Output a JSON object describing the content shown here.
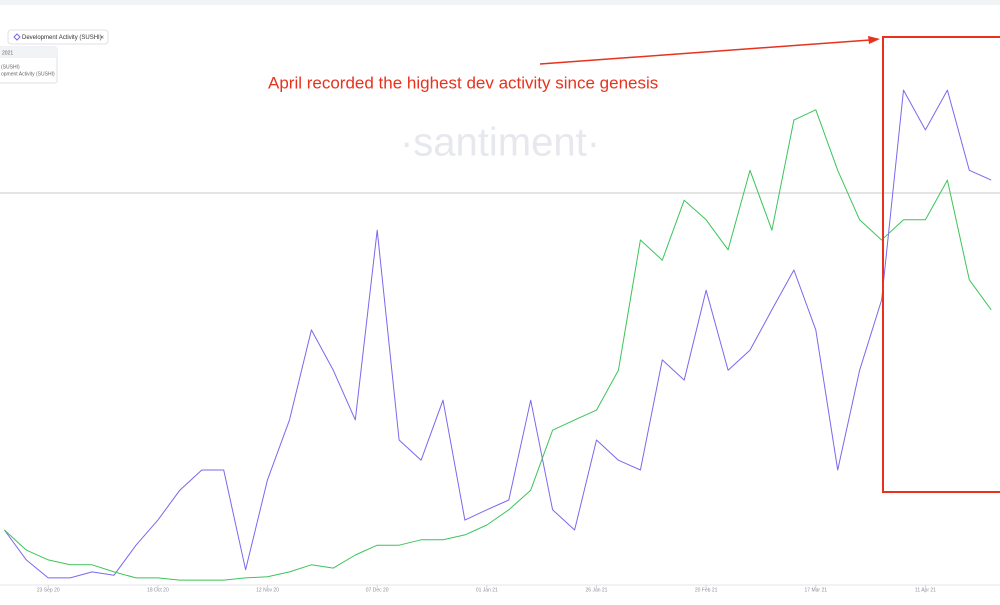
{
  "chart_data": {
    "type": "line",
    "annotation": "April recorded the highest dev activity since genesis",
    "watermark": "·santiment·",
    "legend_chip": "Development Activity (SUSHI)",
    "legend_close": "×",
    "tooltip": [
      "2021",
      "(SUSHI)",
      "opment Activity (SUSHI)"
    ],
    "x": [
      "2020-09-13",
      "2020-09-18",
      "2020-09-23",
      "2020-09-28",
      "2020-10-03",
      "2020-10-08",
      "2020-10-13",
      "2020-10-18",
      "2020-10-23",
      "2020-10-28",
      "2020-11-02",
      "2020-11-07",
      "2020-11-12",
      "2020-11-17",
      "2020-11-22",
      "2020-11-27",
      "2020-12-02",
      "2020-12-07",
      "2020-12-12",
      "2020-12-17",
      "2020-12-22",
      "2020-12-27",
      "2021-01-01",
      "2021-01-06",
      "2021-01-11",
      "2021-01-16",
      "2021-01-21",
      "2021-01-26",
      "2021-01-31",
      "2021-02-05",
      "2021-02-10",
      "2021-02-15",
      "2021-02-20",
      "2021-02-25",
      "2021-03-02",
      "2021-03-07",
      "2021-03-12",
      "2021-03-17",
      "2021-03-22",
      "2021-03-27",
      "2021-04-01",
      "2021-04-06",
      "2021-04-11",
      "2021-04-16",
      "2021-04-21",
      "2021-04-26"
    ],
    "series": [
      {
        "name": "Development Activity (SUSHI)",
        "color": "#7b68ee",
        "values": [
          10.1,
          4.6,
          1.3,
          1.3,
          2.4,
          1.8,
          7.3,
          11.9,
          17.4,
          21.1,
          21.1,
          2.8,
          19.3,
          30.3,
          46.8,
          39.4,
          30.3,
          65.1,
          26.6,
          22.9,
          33.9,
          11.9,
          13.8,
          15.6,
          33.9,
          13.8,
          10.1,
          26.6,
          22.9,
          21.1,
          41.3,
          37.6,
          54.1,
          39.4,
          43.1,
          50.5,
          57.8,
          46.8,
          21.1,
          39.4,
          52.3,
          90.8,
          83.5,
          90.8,
          76.1,
          74.3
        ]
      },
      {
        "color": "#3cc45a",
        "values": [
          10.1,
          6.4,
          4.6,
          3.7,
          3.7,
          2.4,
          1.3,
          1.3,
          0.9,
          0.9,
          0.9,
          1.3,
          1.5,
          2.4,
          3.7,
          3.1,
          5.5,
          7.3,
          7.3,
          8.3,
          8.3,
          9.2,
          11.0,
          13.8,
          17.4,
          28.4,
          30.3,
          32.1,
          39.4,
          63.3,
          59.6,
          70.6,
          67.0,
          61.5,
          76.1,
          65.1,
          85.3,
          87.2,
          76.1,
          67.0,
          63.3,
          67.0,
          67.0,
          74.3,
          56.0,
          50.5
        ]
      }
    ],
    "xlim": [
      "2020-09-12",
      "2021-04-28"
    ],
    "xticks": [
      {
        "value": "2020-09-23",
        "label": "23 Sep 20"
      },
      {
        "value": "2020-10-18",
        "label": "18 Oct 20"
      },
      {
        "value": "2020-11-12",
        "label": "12 Nov 20"
      },
      {
        "value": "2020-12-07",
        "label": "07 Dec 20"
      },
      {
        "value": "2021-01-01",
        "label": "01 Jan 21"
      },
      {
        "value": "2021-01-26",
        "label": "26 Jan 21"
      },
      {
        "value": "2021-02-20",
        "label": "20 Feb 21"
      },
      {
        "value": "2021-03-17",
        "label": "17 Mar 21"
      },
      {
        "value": "2021-04-11",
        "label": "11 Apr 21"
      }
    ],
    "ylim": [
      0,
      100
    ]
  }
}
